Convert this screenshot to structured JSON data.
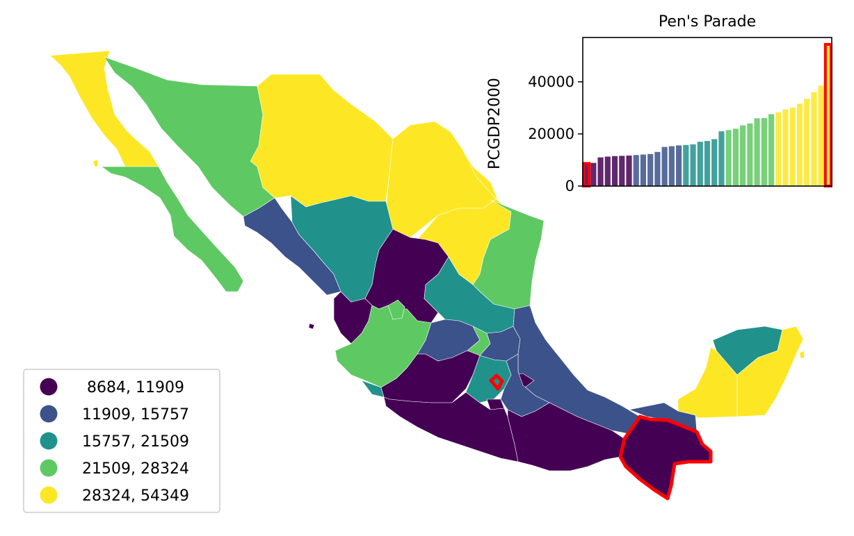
{
  "map": {
    "legend": [
      {
        "label": " 8684, 11909",
        "color": "#440154"
      },
      {
        "label": "11909, 15757",
        "color": "#3b528b"
      },
      {
        "label": "15757, 21509",
        "color": "#21918c"
      },
      {
        "label": "21509, 28324",
        "color": "#5ec962"
      },
      {
        "label": "28324, 54349",
        "color": "#fde725"
      }
    ],
    "highlight_color": "#ff0000"
  },
  "chart_data": {
    "type": "bar",
    "title": "Pen's Parade",
    "ylabel": "PCGDP2000",
    "ylim": [
      0,
      57000
    ],
    "yticks": [
      0,
      20000,
      40000
    ],
    "values": [
      8684,
      8900,
      11000,
      11300,
      11500,
      11600,
      11700,
      11909,
      12100,
      12300,
      13100,
      15000,
      15300,
      15600,
      15757,
      16000,
      17000,
      17300,
      18000,
      21000,
      21509,
      22000,
      23300,
      24000,
      26000,
      26100,
      27600,
      28324,
      29400,
      30100,
      31600,
      33500,
      36000,
      38500,
      54349
    ],
    "colors": [
      "#440154",
      "#440154",
      "#440154",
      "#440154",
      "#440154",
      "#440154",
      "#440154",
      "#3b528b",
      "#3b528b",
      "#3b528b",
      "#3b528b",
      "#3b528b",
      "#3b528b",
      "#3b528b",
      "#21918c",
      "#21918c",
      "#21918c",
      "#21918c",
      "#21918c",
      "#21918c",
      "#5ec962",
      "#5ec962",
      "#5ec962",
      "#5ec962",
      "#5ec962",
      "#5ec962",
      "#5ec962",
      "#fde725",
      "#fde725",
      "#fde725",
      "#fde725",
      "#fde725",
      "#fde725",
      "#fde725",
      "#fde725"
    ],
    "bar_alpha": 0.85,
    "highlight_indices": [
      0,
      34
    ]
  }
}
